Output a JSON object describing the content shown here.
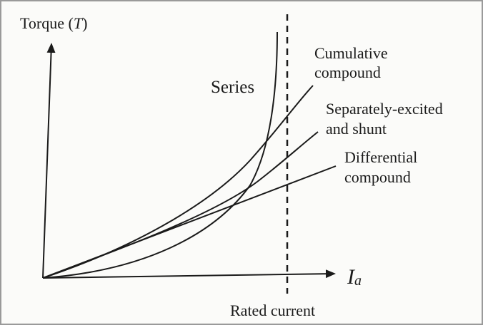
{
  "axes": {
    "y_label": {
      "prefix": "Torque (",
      "symbol": "T",
      "suffix": ")"
    },
    "x_label": {
      "symbol": "I",
      "subscript": "a"
    },
    "marker_label": "Rated current"
  },
  "curves": [
    {
      "label": [
        "Series"
      ]
    },
    {
      "label": [
        "Cumulative",
        "compound"
      ]
    },
    {
      "label": [
        "Separately-excited",
        "and shunt"
      ]
    },
    {
      "label": [
        "Differential",
        "compound"
      ]
    }
  ]
}
